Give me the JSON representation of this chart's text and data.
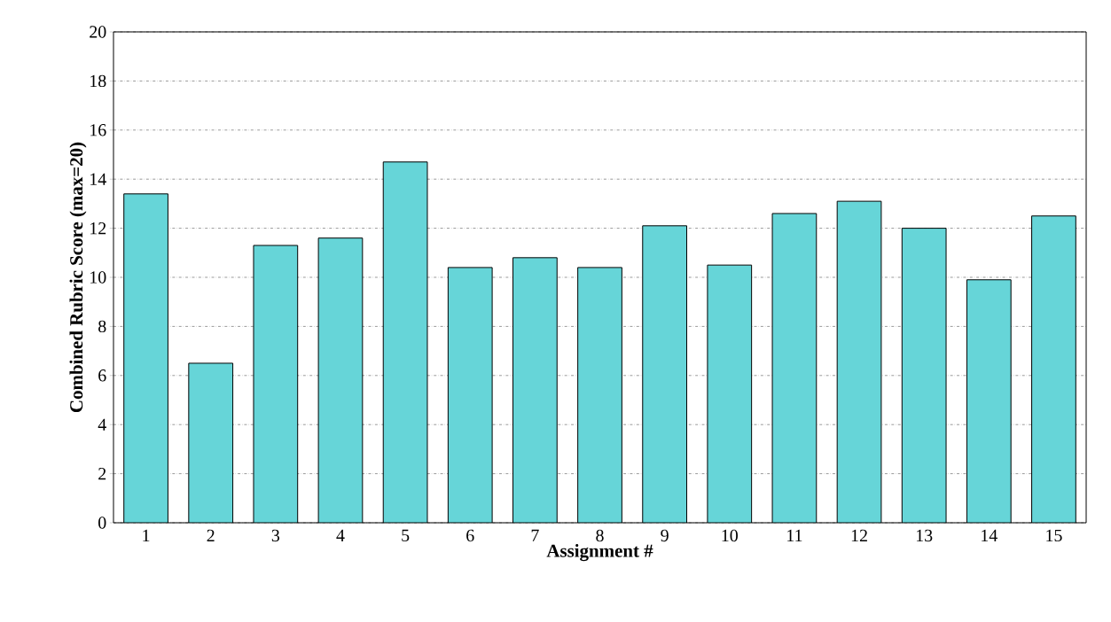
{
  "chart_data": {
    "type": "bar",
    "xlabel": "Assignment #",
    "ylabel": "Combined Rubric Score (max=20)",
    "categories": [
      "1",
      "2",
      "3",
      "4",
      "5",
      "6",
      "7",
      "8",
      "9",
      "10",
      "11",
      "12",
      "13",
      "14",
      "15"
    ],
    "values": [
      13.4,
      6.5,
      11.3,
      11.6,
      14.7,
      10.4,
      10.8,
      10.4,
      12.1,
      10.5,
      12.6,
      13.1,
      12.0,
      9.9,
      12.5
    ],
    "color": "#66d5d8",
    "ylim": [
      0,
      20
    ],
    "yticks": [
      0,
      2,
      4,
      6,
      8,
      10,
      12,
      14,
      16,
      18,
      20
    ],
    "grid": "y"
  }
}
